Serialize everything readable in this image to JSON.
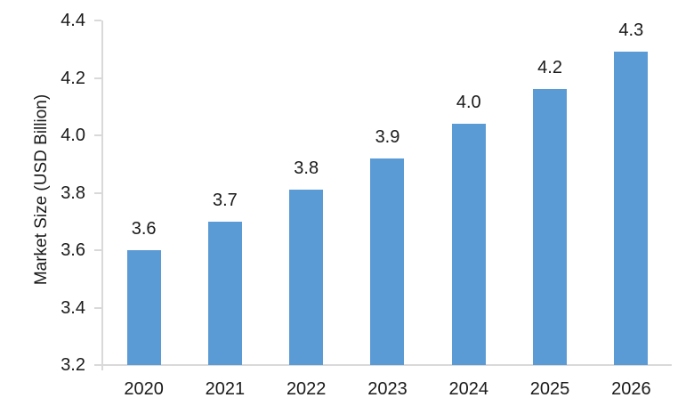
{
  "chart_data": {
    "type": "bar",
    "title": "",
    "xlabel": "",
    "ylabel": "Market Size (USD Billion)",
    "categories": [
      "2020",
      "2021",
      "2022",
      "2023",
      "2024",
      "2025",
      "2026"
    ],
    "values": [
      3.6,
      3.7,
      3.81,
      3.92,
      4.04,
      4.16,
      4.29
    ],
    "value_labels": [
      "3.6",
      "3.7",
      "3.8",
      "3.9",
      "4.0",
      "4.2",
      "4.3"
    ],
    "ylim": [
      3.2,
      4.4
    ],
    "yticks": [
      3.2,
      3.4,
      3.6,
      3.8,
      4.0,
      4.2,
      4.4
    ],
    "ytick_labels": [
      "3.2",
      "3.4",
      "3.6",
      "3.8",
      "4.0",
      "4.2",
      "4.4"
    ],
    "grid": false,
    "legend": "none",
    "bar_color": "#5b9bd5",
    "axis_color": "#d9d9d9",
    "text_color": "#1a1a1a"
  }
}
